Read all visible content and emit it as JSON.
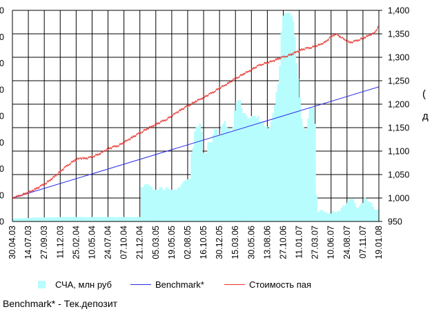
{
  "chart_data": {
    "type": "bar+line",
    "title": "",
    "xlabel": "",
    "x_ticks": [
      "30.04.03",
      "14.07.03",
      "27.09.03",
      "11.12.03",
      "25.02.04",
      "10.05.04",
      "24.07.04",
      "07.10.04",
      "21.12.04",
      "05.03.05",
      "19.05.05",
      "02.08.05",
      "16.10.05",
      "30.12.05",
      "15.03.06",
      "30.05.06",
      "13.08.06",
      "27.10.06",
      "11.01.07",
      "27.03.07",
      "10.06.07",
      "24.08.07",
      "07.11.07",
      "19.01.08"
    ],
    "right_axis": {
      "ticks": [
        "950",
        "1,000",
        "1,050",
        "1,100",
        "1,150",
        "1,200",
        "1,250",
        "1,300",
        "1,350",
        "1,400"
      ],
      "ylim": [
        950,
        1400
      ]
    },
    "left_axis": {
      "ticks": [
        "0",
        "0",
        "0",
        "0",
        "0",
        "0",
        "0",
        "0",
        "0"
      ],
      "note": "left tick labels cut off at image edge; only final digit visible"
    },
    "legend_position": "bottom",
    "grid": true,
    "series": [
      {
        "name": "СЧА, млн руб",
        "kind": "bar",
        "axis": "left",
        "color": "#b7fdfd",
        "values": [
          0.12,
          0.12,
          0.12,
          0.12,
          0.12,
          0.12,
          0.13,
          0.13,
          0.13,
          0.13,
          0.13,
          0.13,
          0.15,
          0.15,
          0.15,
          0.15,
          0.15,
          0.15,
          0.15,
          0.16,
          0.16,
          0.16,
          0.16,
          0.16,
          0.16,
          0.16,
          0.16,
          0.16,
          0.17,
          0.17,
          0.17,
          0.17,
          0.17,
          0.17,
          0.17,
          0.17,
          0.17,
          0.17,
          0.17,
          0.17,
          0.17,
          0.17,
          0.16,
          0.16,
          0.16,
          0.16,
          0.17,
          0.17,
          0.17,
          0.17,
          0.17,
          0.17,
          0.17,
          0.17,
          0.17,
          0.17,
          0.17,
          0.17,
          0.17,
          0.17,
          0.17,
          0.16,
          0.16,
          0.17,
          0.17,
          0.17,
          0.17,
          0.17,
          0.17,
          0.17,
          0.17,
          0.17,
          0.17,
          0.17,
          0.17,
          0.17,
          0.17,
          1.3,
          1.3,
          1.4,
          1.42,
          1.4,
          1.35,
          1.3,
          1.2,
          1.2,
          1.2,
          1.2,
          1.3,
          1.3,
          1.2,
          1.2,
          1.3,
          1.25,
          1.2,
          1.2,
          1.2,
          1.2,
          1.2,
          1.3,
          1.3,
          1.4,
          1.5,
          1.55,
          1.6,
          1.6,
          1.6,
          2.6,
          2.8,
          3.4,
          3.6,
          3.6,
          3.7,
          3.4,
          2.6,
          2.6,
          2.6,
          3.0,
          3.0,
          3.0,
          3.3,
          3.5,
          3.5,
          3.3,
          3.3,
          3.6,
          3.7,
          3.8,
          3.6,
          3.5,
          3.5,
          3.4,
          3.6,
          4.2,
          4.5,
          4.6,
          4.6,
          4.3,
          4.1,
          4.1,
          4.0,
          3.9,
          3.9,
          4.0,
          4.0,
          4.0,
          3.9,
          4.0,
          3.8,
          3.8,
          3.8,
          3.6,
          3.6,
          3.5,
          3.6,
          3.8,
          4.1,
          4.4,
          4.9,
          5.2,
          5.9,
          7.2,
          7.8,
          7.9,
          7.9,
          7.9,
          7.9,
          7.8,
          7.6,
          7.0,
          6.0,
          5.4,
          4.7,
          3.9,
          3.6,
          3.5,
          3.5,
          3.9,
          4.3,
          4.3,
          4.3,
          3.7,
          1.0,
          0.35,
          0.4,
          0.45,
          0.4,
          0.35,
          0.35,
          0.3,
          0.3,
          0.3,
          0.4,
          0.35,
          0.35,
          0.4,
          0.4,
          0.5,
          0.6,
          0.6,
          0.7,
          0.8,
          0.85,
          0.85,
          0.85,
          0.7,
          0.55,
          0.5,
          0.6,
          0.7,
          0.7,
          0.9,
          0.85,
          0.75,
          0.75,
          0.7,
          0.55,
          0.45,
          0.45,
          0.45
        ]
      },
      {
        "name": "Benchmark*",
        "kind": "line",
        "axis": "right",
        "color": "#2a2ae8",
        "x": [
          0,
          1
        ],
        "values": [
          1000,
          1237
        ]
      },
      {
        "name": "Стоимость пая",
        "kind": "line",
        "axis": "right",
        "color": "#e8302a",
        "values": [
          1000,
          1003,
          1007,
          1011,
          1015,
          1020,
          1026,
          1032,
          1040,
          1048,
          1057,
          1066,
          1074,
          1081,
          1085,
          1084,
          1086,
          1090,
          1094,
          1100,
          1105,
          1109,
          1112,
          1118,
          1124,
          1130,
          1136,
          1142,
          1148,
          1153,
          1158,
          1163,
          1168,
          1175,
          1182,
          1188,
          1194,
          1200,
          1206,
          1211,
          1216,
          1222,
          1228,
          1235,
          1240,
          1246,
          1253,
          1259,
          1265,
          1270,
          1276,
          1282,
          1286,
          1289,
          1292,
          1296,
          1300,
          1303,
          1307,
          1312,
          1316,
          1319,
          1321,
          1324,
          1328,
          1333,
          1343,
          1350,
          1344,
          1337,
          1331,
          1334,
          1338,
          1342,
          1347,
          1351,
          1366
        ]
      }
    ]
  },
  "legend": [
    {
      "label": "СЧА, млн руб",
      "color": "#b7fdfd",
      "kind": "box"
    },
    {
      "label": "Benchmark*",
      "color": "#2a2ae8",
      "kind": "line"
    },
    {
      "label": "Стоимость пая",
      "color": "#e8302a",
      "kind": "line"
    }
  ],
  "footnote": "Benchmark* - Тек.депозит",
  "cut_labels": [
    "(",
    "д"
  ]
}
